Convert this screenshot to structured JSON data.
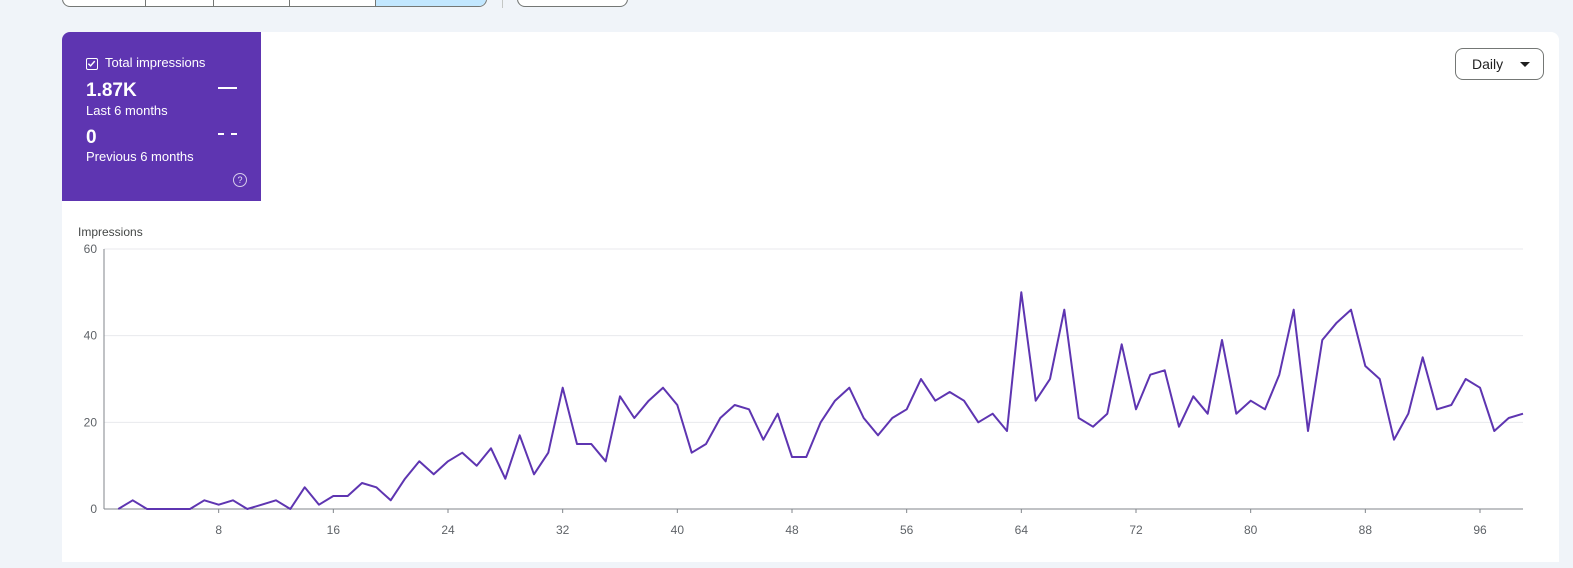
{
  "metric_card": {
    "checkbox_label": "Total impressions",
    "current_value": "1.87K",
    "current_period": "Last 6 months",
    "previous_value": "0",
    "previous_period": "Previous 6 months",
    "help_glyph": "?",
    "color": "#5e35b1"
  },
  "granularity": {
    "selected": "Daily"
  },
  "chart_data": {
    "type": "line",
    "ylabel": "Impressions",
    "ylim": [
      0,
      60
    ],
    "yticks": [
      0,
      20,
      40,
      60
    ],
    "xlim": [
      0,
      99
    ],
    "xticks": [
      8,
      16,
      24,
      32,
      40,
      48,
      56,
      64,
      72,
      80,
      88,
      96
    ],
    "grid": true,
    "series": [
      {
        "color": "#5e35b1",
        "x": [
          1,
          2,
          3,
          4,
          5,
          6,
          7,
          8,
          9,
          10,
          11,
          12,
          13,
          14,
          15,
          16,
          17,
          18,
          19,
          20,
          21,
          22,
          23,
          24,
          25,
          26,
          27,
          28,
          29,
          30,
          31,
          32,
          33,
          34,
          35,
          36,
          37,
          38,
          39,
          40,
          41,
          42,
          43,
          44,
          45,
          46,
          47,
          48,
          49,
          50,
          51,
          52,
          53,
          54,
          55,
          56,
          57,
          58,
          59,
          60,
          61,
          62,
          63,
          64,
          65,
          66,
          67,
          68,
          69,
          70,
          71,
          72,
          73,
          74,
          75,
          76,
          77,
          78,
          79,
          80,
          81,
          82,
          83,
          84,
          85,
          86,
          87,
          88,
          89,
          90,
          91,
          92,
          93,
          94,
          95,
          96,
          97,
          98,
          99
        ],
        "y": [
          0,
          2,
          0,
          0,
          0,
          0,
          2,
          1,
          2,
          0,
          1,
          2,
          0,
          5,
          1,
          3,
          3,
          6,
          5,
          2,
          7,
          11,
          8,
          11,
          13,
          10,
          14,
          7,
          17,
          8,
          13,
          28,
          15,
          15,
          11,
          26,
          21,
          25,
          28,
          24,
          13,
          15,
          21,
          24,
          23,
          16,
          22,
          12,
          12,
          20,
          25,
          28,
          21,
          17,
          21,
          23,
          30,
          25,
          27,
          25,
          20,
          22,
          18,
          50,
          25,
          30,
          46,
          21,
          19,
          22,
          38,
          23,
          31,
          32,
          19,
          26,
          22,
          39,
          22,
          25,
          23,
          31,
          46,
          18,
          39,
          43,
          46,
          33,
          30,
          16,
          22,
          35,
          23,
          24,
          30,
          28,
          18,
          21,
          22
        ]
      }
    ]
  }
}
